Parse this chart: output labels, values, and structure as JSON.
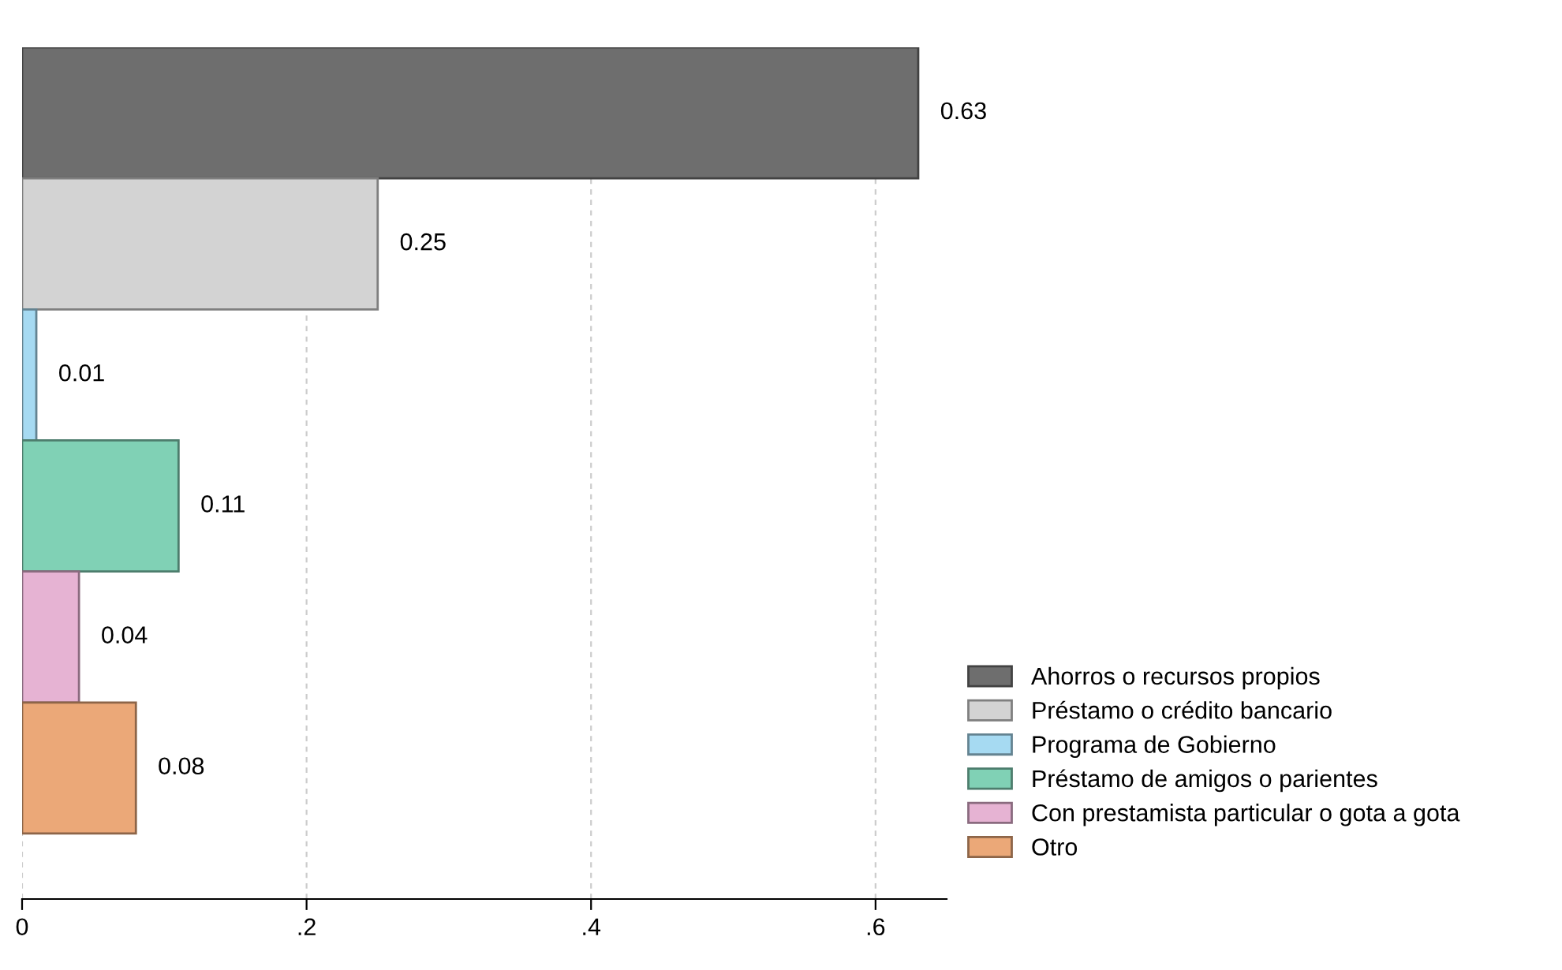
{
  "chart_data": {
    "type": "bar",
    "orientation": "horizontal",
    "categories": [
      null,
      null,
      null,
      null,
      null,
      null
    ],
    "series": [
      {
        "name": "Ahorros o recursos propios",
        "color": "#6e6e6e",
        "values": [
          0.63,
          null,
          null,
          null,
          null,
          null
        ]
      },
      {
        "name": "Préstamo o crédito bancario",
        "color": "#d3d3d3",
        "values": [
          null,
          0.25,
          null,
          null,
          null,
          null
        ]
      },
      {
        "name": "Programa de Gobierno",
        "color": "#a6daf2",
        "values": [
          null,
          null,
          0.01,
          null,
          null,
          null
        ]
      },
      {
        "name": "Préstamo de amigos o parientes",
        "color": "#80d1b5",
        "values": [
          null,
          null,
          null,
          0.11,
          null,
          null
        ]
      },
      {
        "name": "Con prestamista particular o gota a gota",
        "color": "#e6b3d3",
        "values": [
          null,
          null,
          null,
          null,
          0.04,
          null
        ]
      },
      {
        "name": "Otro",
        "color": "#eba878",
        "values": [
          null,
          null,
          null,
          null,
          null,
          0.08
        ]
      }
    ],
    "data_labels": true,
    "xlim": [
      0,
      0.65
    ],
    "xticks": [
      0,
      {
        "value": 0.2,
        "label": ".2"
      },
      {
        "value": 0.4,
        "label": ".4"
      },
      {
        "value": 0.6,
        "label": ".6"
      }
    ],
    "grid": "x",
    "legend": "bottom right"
  }
}
